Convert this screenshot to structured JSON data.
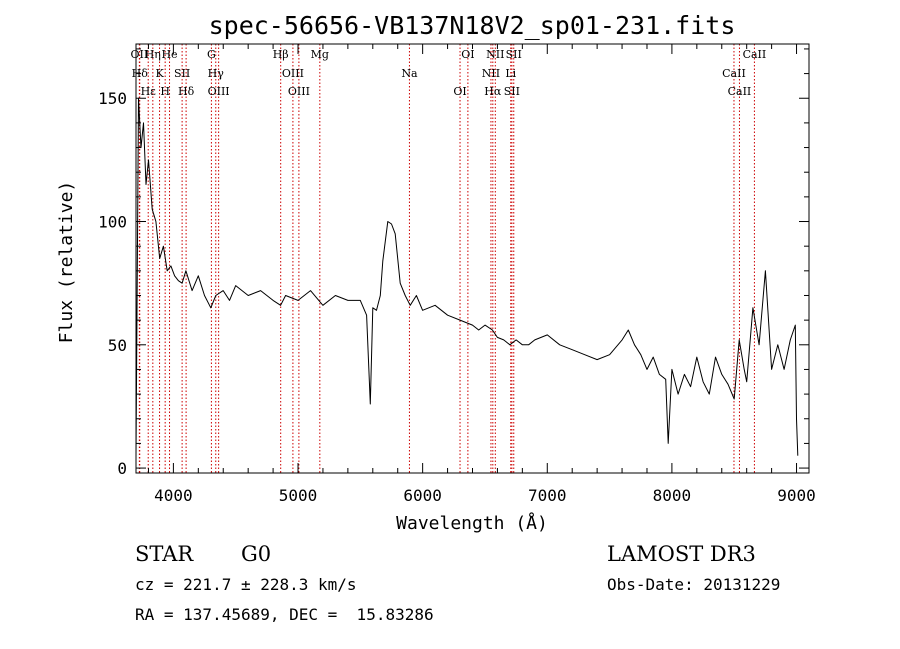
{
  "chart_data": {
    "type": "line",
    "title": "spec-56656-VB137N18V2_sp01-231.fits",
    "xlabel": "Wavelength (Å)",
    "ylabel": "Flux (relative)",
    "xlim": [
      3700,
      9100
    ],
    "ylim": [
      -2,
      172
    ],
    "x_ticks": [
      4000,
      5000,
      6000,
      7000,
      8000,
      9000
    ],
    "x_tick_labels": [
      "4000",
      "5000",
      "6000",
      "7000",
      "8000",
      "9000"
    ],
    "y_ticks": [
      0,
      50,
      100,
      150
    ],
    "y_tick_labels": [
      "0",
      "50",
      "100",
      "150"
    ],
    "series": [
      {
        "name": "flux",
        "x": [
          3700,
          3720,
          3740,
          3760,
          3780,
          3800,
          3830,
          3860,
          3890,
          3920,
          3950,
          3980,
          4010,
          4040,
          4070,
          4100,
          4150,
          4200,
          4250,
          4300,
          4340,
          4400,
          4450,
          4500,
          4600,
          4700,
          4800,
          4860,
          4900,
          5000,
          5100,
          5200,
          5300,
          5400,
          5500,
          5550,
          5580,
          5600,
          5630,
          5660,
          5680,
          5700,
          5720,
          5750,
          5780,
          5820,
          5860,
          5900,
          5950,
          6000,
          6100,
          6200,
          6300,
          6400,
          6450,
          6500,
          6560,
          6600,
          6650,
          6700,
          6750,
          6800,
          6850,
          6900,
          7000,
          7100,
          7200,
          7300,
          7400,
          7500,
          7600,
          7650,
          7700,
          7750,
          7800,
          7850,
          7900,
          7950,
          7970,
          8000,
          8050,
          8100,
          8150,
          8200,
          8250,
          8300,
          8350,
          8400,
          8450,
          8500,
          8540,
          8580,
          8600,
          8650,
          8700,
          8750,
          8800,
          8850,
          8900,
          8950,
          8990,
          9000,
          9010
        ],
        "values": [
          5,
          150,
          130,
          140,
          115,
          125,
          105,
          100,
          85,
          90,
          80,
          82,
          78,
          76,
          75,
          80,
          72,
          78,
          70,
          65,
          70,
          72,
          68,
          74,
          70,
          72,
          68,
          66,
          70,
          68,
          72,
          66,
          70,
          68,
          68,
          62,
          26,
          65,
          64,
          70,
          84,
          92,
          100,
          99,
          95,
          75,
          70,
          66,
          70,
          64,
          66,
          62,
          60,
          58,
          56,
          58,
          56,
          53,
          52,
          50,
          52,
          50,
          50,
          52,
          54,
          50,
          48,
          46,
          44,
          46,
          52,
          56,
          50,
          46,
          40,
          45,
          38,
          36,
          10,
          40,
          30,
          38,
          33,
          45,
          35,
          30,
          45,
          38,
          34,
          28,
          52,
          40,
          35,
          65,
          50,
          80,
          40,
          50,
          40,
          52,
          58,
          20,
          5
        ]
      }
    ],
    "lines": [
      {
        "name": "OII",
        "x": 3727
      },
      {
        "name": "Hδ",
        "x": 3730
      },
      {
        "name": "Hε",
        "x": 3798
      },
      {
        "name": "Hη",
        "x": 3835
      },
      {
        "name": "K",
        "x": 3889
      },
      {
        "name": "H",
        "x": 3934
      },
      {
        "name": "He",
        "x": 3969
      },
      {
        "name": "SII",
        "x": 4070
      },
      {
        "name": "Hδ",
        "x": 4102
      },
      {
        "name": "G",
        "x": 4305
      },
      {
        "name": "Hγ",
        "x": 4340
      },
      {
        "name": "OIII",
        "x": 4363
      },
      {
        "name": "Hβ",
        "x": 4861
      },
      {
        "name": "OIII",
        "x": 4959
      },
      {
        "name": "OIII",
        "x": 5007
      },
      {
        "name": "Mg",
        "x": 5175
      },
      {
        "name": "Na",
        "x": 5894
      },
      {
        "name": "OI",
        "x": 6300
      },
      {
        "name": "OI",
        "x": 6363
      },
      {
        "name": "NII",
        "x": 6548
      },
      {
        "name": "Hα",
        "x": 6563
      },
      {
        "name": "NII",
        "x": 6583
      },
      {
        "name": "Li",
        "x": 6707
      },
      {
        "name": "SII",
        "x": 6716
      },
      {
        "name": "SII",
        "x": 6731
      },
      {
        "name": "CaII",
        "x": 8498
      },
      {
        "name": "CaII",
        "x": 8542
      },
      {
        "name": "CaII",
        "x": 8662
      }
    ]
  },
  "info": {
    "class_label": "STAR",
    "subclass": "G0",
    "survey": "LAMOST DR3",
    "redshift_text": "cz = 221.7 ± 228.3 km/s",
    "obs_date_text": "Obs-Date: 20131229",
    "coords_text": "RA = 137.45689, DEC =  15.83286"
  },
  "colors": {
    "line": "#000000",
    "marker": "#cc0000",
    "background": "#ffffff"
  }
}
